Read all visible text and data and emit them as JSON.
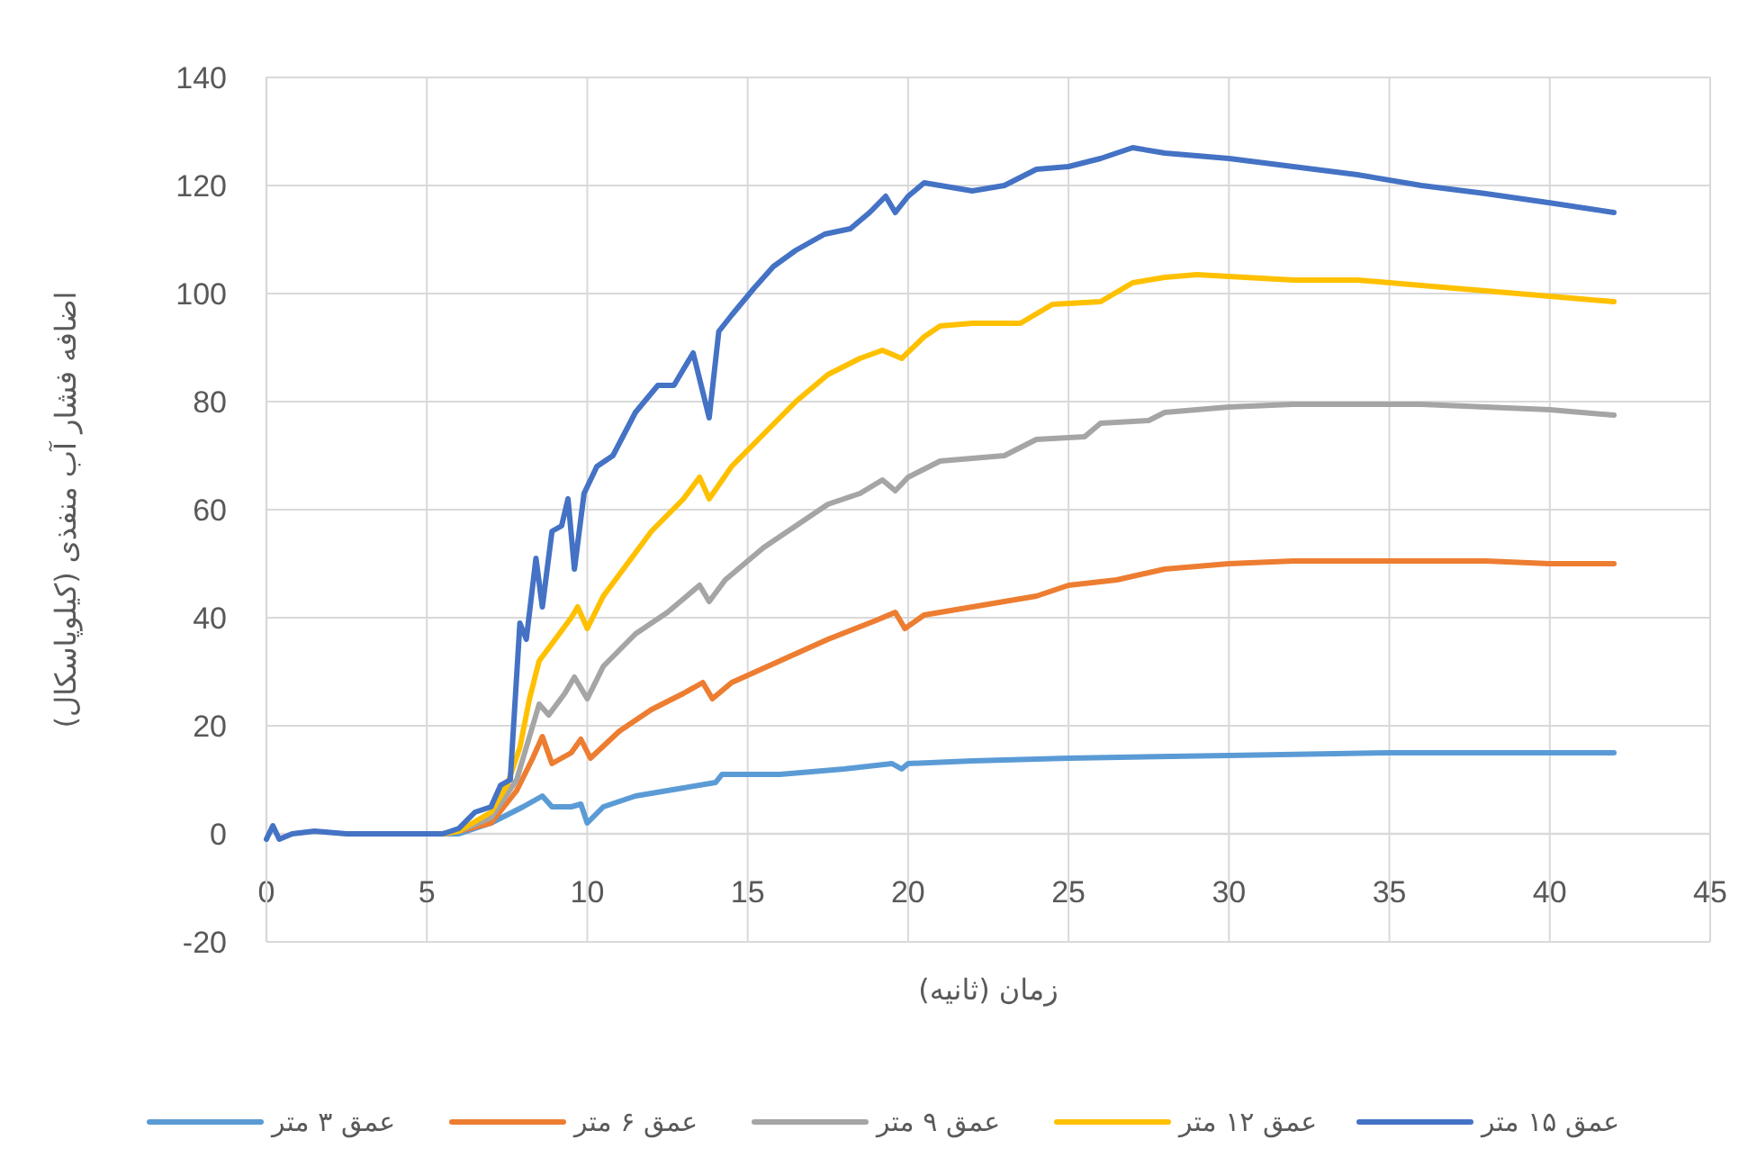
{
  "chart_data": {
    "type": "line",
    "xlabel": "زمان (ثانیه)",
    "ylabel": "اضافه فشار آب منفذی (کیلوپاسکال)",
    "xlim": [
      0,
      45
    ],
    "ylim": [
      -20,
      140
    ],
    "xticks": [
      0,
      5,
      10,
      15,
      20,
      25,
      30,
      35,
      40,
      45
    ],
    "yticks": [
      -20,
      0,
      20,
      40,
      60,
      80,
      100,
      120,
      140
    ],
    "grid": true,
    "legend": "bottom",
    "series": [
      {
        "name": "عمق ۳ متر",
        "color": "#5b9bd5",
        "x": [
          5.5,
          6,
          7,
          8,
          8.6,
          8.9,
          9.5,
          9.8,
          10,
          10.5,
          11.5,
          13,
          14,
          14.2,
          16,
          18,
          19.5,
          19.8,
          20,
          22,
          25,
          30,
          35,
          40,
          42
        ],
        "values": [
          0,
          0,
          2,
          5,
          7,
          5,
          5,
          5.5,
          2,
          5,
          7,
          8.5,
          9.5,
          11,
          11,
          12,
          13,
          12,
          13,
          13.5,
          14,
          14.5,
          15,
          15,
          15
        ]
      },
      {
        "name": "عمق ۶ متر",
        "color": "#ed7d31",
        "x": [
          5.5,
          6,
          7,
          7.8,
          8.3,
          8.6,
          8.9,
          9.5,
          9.8,
          10.1,
          11,
          12,
          13,
          13.6,
          13.9,
          14.5,
          16,
          17.5,
          19,
          19.6,
          19.9,
          20.5,
          22,
          24,
          25,
          26.5,
          28,
          30,
          32,
          34,
          36,
          38,
          40,
          42
        ],
        "values": [
          0,
          0.5,
          2,
          8,
          14,
          18,
          13,
          15,
          17.5,
          14,
          19,
          23,
          26,
          28,
          25,
          28,
          32,
          36,
          39.5,
          41,
          38,
          40.5,
          42,
          44,
          46,
          47,
          49,
          50,
          50.5,
          50.5,
          50.5,
          50.5,
          50,
          50
        ]
      },
      {
        "name": "عمق ۹ متر",
        "color": "#a5a5a5",
        "x": [
          5.5,
          6,
          7,
          7.8,
          8.5,
          8.8,
          9.3,
          9.6,
          10,
          10.5,
          11.5,
          12.5,
          13.5,
          13.8,
          14.3,
          15.5,
          16.5,
          17.5,
          18.5,
          19.2,
          19.6,
          20,
          21,
          23,
          24,
          25.5,
          26,
          27.5,
          28,
          30,
          32,
          34,
          36,
          38,
          40,
          42
        ],
        "values": [
          0,
          0.5,
          3,
          10,
          24,
          22,
          26,
          29,
          25,
          31,
          37,
          41,
          46,
          43,
          47,
          53,
          57,
          61,
          63,
          65.5,
          63.5,
          66,
          69,
          70,
          73,
          73.5,
          76,
          76.5,
          78,
          79,
          79.5,
          79.5,
          79.5,
          79,
          78.5,
          77.5
        ]
      },
      {
        "name": "عمق ۱۲ متر",
        "color": "#ffc000",
        "x": [
          5.5,
          6,
          7,
          7.5,
          7.9,
          8.2,
          8.5,
          9,
          9.5,
          9.7,
          10,
          10.5,
          11,
          12,
          13,
          13.5,
          13.8,
          14.5,
          15.5,
          16.5,
          17.5,
          18.5,
          19.2,
          19.8,
          20.5,
          21,
          22,
          23.5,
          24.5,
          26,
          27,
          28,
          29,
          32,
          34,
          36,
          38,
          40,
          42
        ],
        "values": [
          0,
          0.5,
          4,
          9,
          16,
          25,
          32,
          36,
          40,
          42,
          38,
          44,
          48,
          56,
          62,
          66,
          62,
          68,
          74,
          80,
          85,
          88,
          89.5,
          88,
          92,
          94,
          94.5,
          94.5,
          98,
          98.5,
          102,
          103,
          103.5,
          102.5,
          102.5,
          101.5,
          100.5,
          99.5,
          98.5
        ]
      },
      {
        "name": "عمق ۱۵ متر",
        "color": "#4472c4",
        "x": [
          0,
          0.2,
          0.4,
          0.8,
          1.5,
          2.5,
          3.5,
          4.5,
          5.5,
          6,
          6.5,
          7,
          7.3,
          7.6,
          7.9,
          8.1,
          8.4,
          8.6,
          8.9,
          9.2,
          9.4,
          9.6,
          9.9,
          10.3,
          10.8,
          11.5,
          12.2,
          12.7,
          13.3,
          13.8,
          14.1,
          14.5,
          15.2,
          15.8,
          16.5,
          17.4,
          18.2,
          18.8,
          19.3,
          19.6,
          20,
          20.5,
          21.5,
          22,
          23,
          24,
          25,
          26,
          27,
          28,
          30,
          32,
          34,
          36,
          38,
          40,
          42
        ],
        "values": [
          -1,
          1.5,
          -1,
          0,
          0.5,
          0,
          0,
          0,
          0,
          1,
          4,
          5,
          9,
          10,
          39,
          36,
          51,
          42,
          56,
          57,
          62,
          49,
          63,
          68,
          70,
          78,
          83,
          83,
          89,
          77,
          93,
          96,
          101,
          105,
          108,
          111,
          112,
          115,
          118,
          115,
          118,
          120.5,
          119.5,
          119,
          120,
          123,
          123.5,
          125,
          127,
          126,
          125,
          123.5,
          122,
          120,
          118.5,
          116.8,
          115
        ]
      }
    ]
  }
}
